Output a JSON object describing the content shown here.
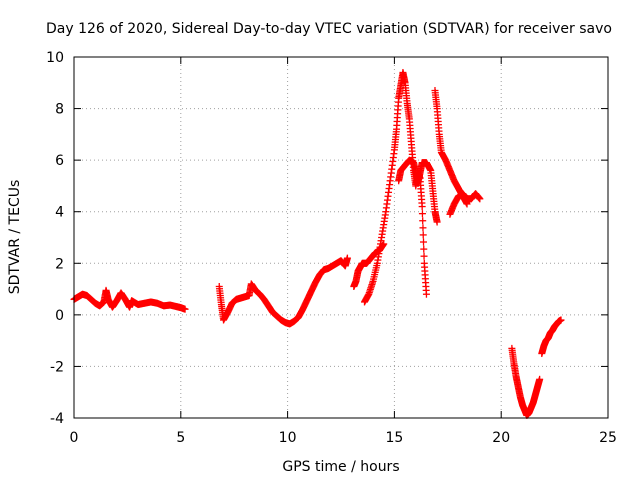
{
  "chart_data": {
    "type": "scatter",
    "title": "Day 126 of 2020, Sidereal Day-to-day VTEC variation (SDTVAR) for receiver savo",
    "xlabel": "GPS time / hours",
    "ylabel": "SDTVAR / TECUs",
    "xlim": [
      0,
      25
    ],
    "ylim": [
      -4,
      10
    ],
    "xticks": [
      0,
      5,
      10,
      15,
      20,
      25
    ],
    "yticks": [
      -4,
      -2,
      0,
      2,
      4,
      6,
      8,
      10
    ],
    "grid": true,
    "marker": "+",
    "series": [
      {
        "name": "SDTVAR",
        "color": "#ff0000",
        "segments": [
          [
            [
              0.0,
              0.6
            ],
            [
              0.2,
              0.7
            ],
            [
              0.4,
              0.8
            ],
            [
              0.6,
              0.75
            ],
            [
              0.8,
              0.6
            ],
            [
              1.0,
              0.45
            ],
            [
              1.2,
              0.35
            ],
            [
              1.4,
              0.5
            ],
            [
              1.5,
              0.95
            ],
            [
              1.6,
              0.6
            ],
            [
              1.8,
              0.3
            ],
            [
              2.0,
              0.55
            ],
            [
              2.2,
              0.85
            ],
            [
              2.4,
              0.6
            ],
            [
              2.6,
              0.3
            ],
            [
              2.7,
              0.55
            ],
            [
              3.0,
              0.4
            ],
            [
              3.3,
              0.45
            ],
            [
              3.6,
              0.5
            ],
            [
              3.9,
              0.45
            ],
            [
              4.2,
              0.35
            ],
            [
              4.5,
              0.38
            ],
            [
              4.8,
              0.32
            ],
            [
              5.0,
              0.28
            ],
            [
              5.2,
              0.22
            ]
          ],
          [
            [
              6.8,
              1.1
            ],
            [
              6.9,
              0.4
            ],
            [
              7.0,
              -0.2
            ],
            [
              7.2,
              0.1
            ],
            [
              7.4,
              0.45
            ],
            [
              7.6,
              0.6
            ],
            [
              7.8,
              0.65
            ],
            [
              8.0,
              0.7
            ],
            [
              8.2,
              0.75
            ],
            [
              8.3,
              1.2
            ],
            [
              8.5,
              0.95
            ],
            [
              8.7,
              0.8
            ],
            [
              8.9,
              0.6
            ],
            [
              9.1,
              0.35
            ],
            [
              9.3,
              0.1
            ],
            [
              9.5,
              -0.05
            ],
            [
              9.7,
              -0.2
            ],
            [
              9.9,
              -0.3
            ],
            [
              10.1,
              -0.35
            ],
            [
              10.3,
              -0.25
            ],
            [
              10.5,
              -0.1
            ],
            [
              10.7,
              0.2
            ],
            [
              10.9,
              0.55
            ],
            [
              11.1,
              0.9
            ],
            [
              11.3,
              1.25
            ],
            [
              11.5,
              1.55
            ],
            [
              11.7,
              1.75
            ],
            [
              11.9,
              1.8
            ],
            [
              12.1,
              1.9
            ],
            [
              12.3,
              2.0
            ],
            [
              12.5,
              2.1
            ],
            [
              12.7,
              1.9
            ],
            [
              12.8,
              2.2
            ]
          ],
          [
            [
              13.1,
              1.1
            ],
            [
              13.2,
              1.3
            ],
            [
              13.3,
              1.7
            ],
            [
              13.4,
              1.85
            ],
            [
              13.5,
              2.0
            ],
            [
              13.7,
              2.0
            ],
            [
              13.9,
              2.2
            ],
            [
              14.1,
              2.4
            ],
            [
              14.3,
              2.5
            ],
            [
              14.5,
              2.75
            ]
          ],
          [
            [
              13.6,
              0.5
            ],
            [
              13.8,
              0.8
            ],
            [
              14.0,
              1.3
            ],
            [
              14.2,
              2.0
            ],
            [
              14.4,
              3.0
            ],
            [
              14.6,
              4.0
            ],
            [
              14.8,
              5.2
            ],
            [
              15.0,
              6.4
            ],
            [
              15.1,
              7.2
            ],
            [
              15.2,
              8.4
            ],
            [
              15.3,
              8.9
            ],
            [
              15.4,
              9.4
            ],
            [
              15.5,
              9.0
            ],
            [
              15.6,
              8.2
            ],
            [
              15.7,
              7.6
            ],
            [
              15.8,
              6.6
            ],
            [
              15.9,
              5.6
            ],
            [
              16.0,
              5.0
            ],
            [
              16.1,
              5.5
            ],
            [
              16.2,
              5.3
            ],
            [
              16.3,
              4.2
            ],
            [
              16.4,
              2.0
            ],
            [
              16.5,
              0.8
            ]
          ],
          [
            [
              15.2,
              5.2
            ],
            [
              15.3,
              5.6
            ],
            [
              15.5,
              5.8
            ],
            [
              15.7,
              6.0
            ],
            [
              15.9,
              5.9
            ],
            [
              16.0,
              5.5
            ],
            [
              16.1,
              5.1
            ],
            [
              16.2,
              5.5
            ],
            [
              16.3,
              5.9
            ],
            [
              16.5,
              5.9
            ],
            [
              16.7,
              5.6
            ],
            [
              16.8,
              4.8
            ],
            [
              16.9,
              4.0
            ],
            [
              17.0,
              3.6
            ]
          ],
          [
            [
              16.9,
              8.7
            ],
            [
              17.0,
              8.0
            ],
            [
              17.1,
              7.0
            ],
            [
              17.2,
              6.3
            ],
            [
              17.4,
              6.0
            ],
            [
              17.6,
              5.6
            ],
            [
              17.8,
              5.2
            ],
            [
              18.0,
              4.9
            ],
            [
              18.2,
              4.6
            ],
            [
              18.4,
              4.3
            ]
          ],
          [
            [
              17.6,
              3.9
            ],
            [
              17.8,
              4.3
            ],
            [
              18.0,
              4.6
            ],
            [
              18.2,
              4.7
            ],
            [
              18.4,
              4.5
            ],
            [
              18.6,
              4.5
            ],
            [
              18.8,
              4.7
            ],
            [
              19.0,
              4.5
            ]
          ],
          [
            [
              20.5,
              -1.3
            ],
            [
              20.6,
              -1.9
            ],
            [
              20.7,
              -2.4
            ],
            [
              20.8,
              -2.8
            ],
            [
              20.9,
              -3.2
            ],
            [
              21.0,
              -3.5
            ],
            [
              21.1,
              -3.7
            ],
            [
              21.2,
              -3.9
            ],
            [
              21.3,
              -3.8
            ],
            [
              21.4,
              -3.6
            ],
            [
              21.5,
              -3.4
            ],
            [
              21.6,
              -3.1
            ],
            [
              21.7,
              -2.8
            ],
            [
              21.8,
              -2.5
            ]
          ],
          [
            [
              21.9,
              -1.5
            ],
            [
              22.0,
              -1.2
            ],
            [
              22.1,
              -1.0
            ],
            [
              22.2,
              -0.9
            ],
            [
              22.3,
              -0.7
            ],
            [
              22.4,
              -0.6
            ],
            [
              22.5,
              -0.45
            ],
            [
              22.6,
              -0.35
            ],
            [
              22.7,
              -0.25
            ],
            [
              22.8,
              -0.2
            ]
          ]
        ]
      }
    ]
  }
}
